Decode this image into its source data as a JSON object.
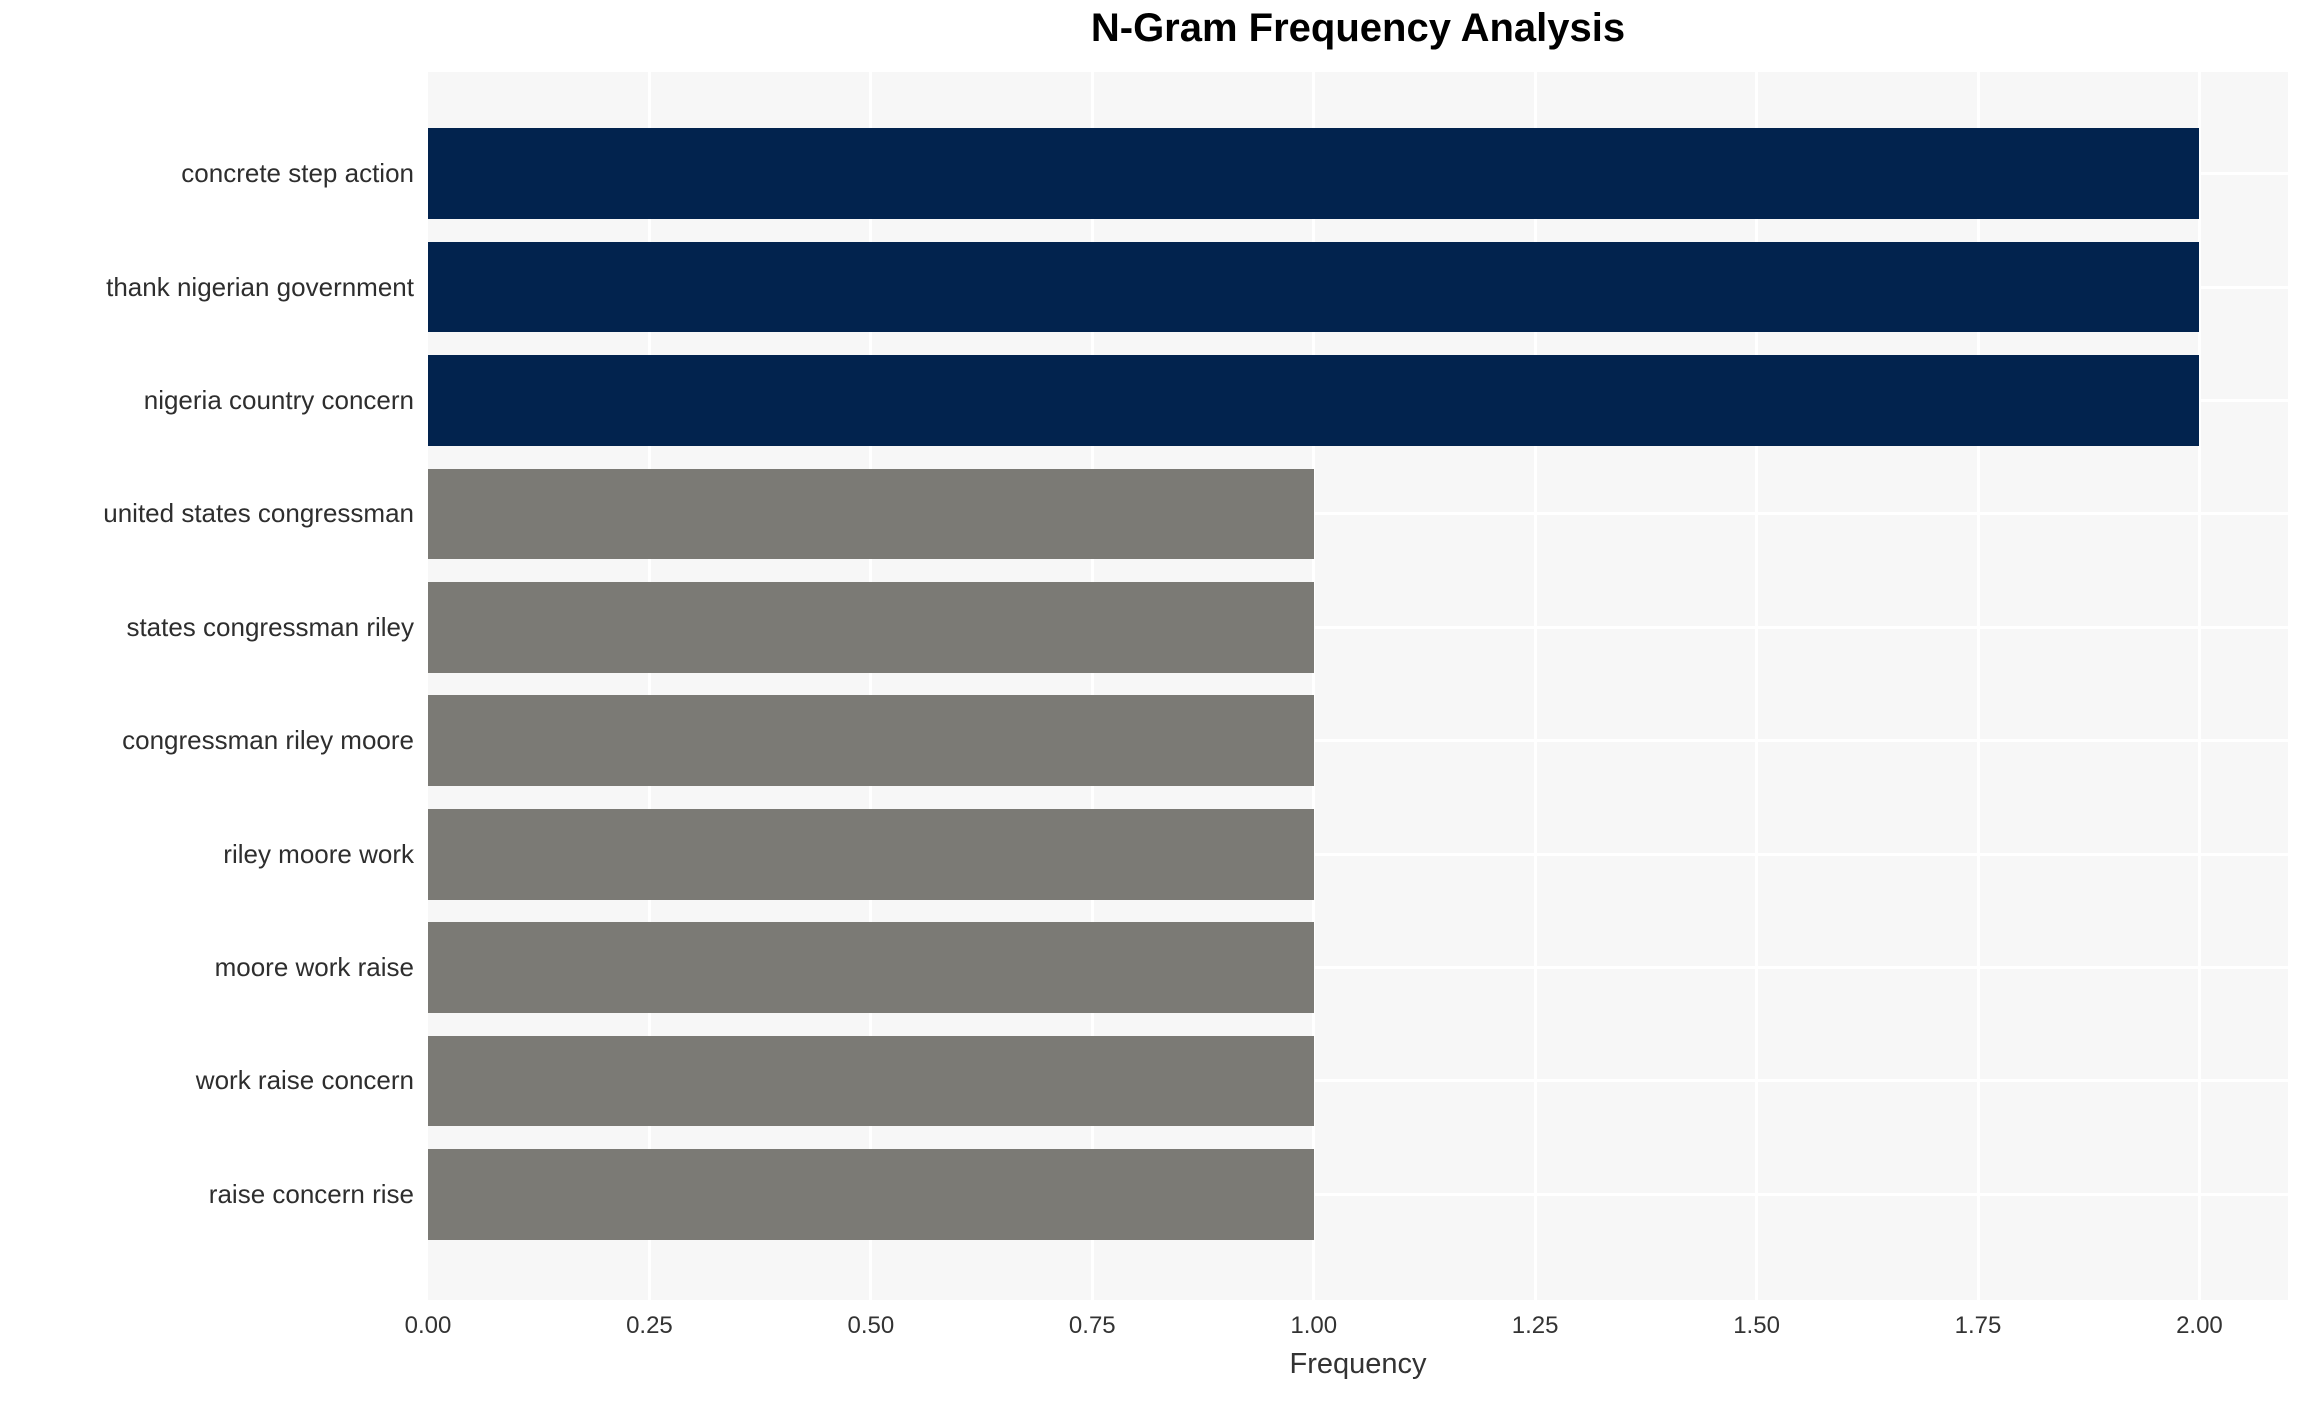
{
  "title": "N-Gram Frequency Analysis",
  "chart_data": {
    "type": "bar",
    "orientation": "horizontal",
    "title": "N-Gram Frequency Analysis",
    "categories": [
      "concrete step action",
      "thank nigerian government",
      "nigeria country concern",
      "united states congressman",
      "states congressman riley",
      "congressman riley moore",
      "riley moore work",
      "moore work raise",
      "work raise concern",
      "raise concern rise"
    ],
    "values": [
      2,
      2,
      2,
      1,
      1,
      1,
      1,
      1,
      1,
      1
    ],
    "bar_colors": [
      "#02234e",
      "#02234e",
      "#02234e",
      "#7b7a75",
      "#7b7a75",
      "#7b7a75",
      "#7b7a75",
      "#7b7a75",
      "#7b7a75",
      "#7b7a75"
    ],
    "xlabel": "Frequency",
    "ylabel": "",
    "xlim": [
      0,
      2.1
    ],
    "xticks": [
      0,
      0.25,
      0.5,
      0.75,
      1,
      1.25,
      1.5,
      1.75,
      2
    ],
    "xtick_labels": [
      "0.00",
      "0.25",
      "0.50",
      "0.75",
      "1.00",
      "1.25",
      "1.50",
      "1.75",
      "2.00"
    ],
    "grid": true,
    "legend": "none",
    "colors": {
      "high_value_bar": "#02234e",
      "low_value_bar": "#7b7a75",
      "plot_background": "#f7f7f7",
      "gridline": "#ffffff",
      "title_text": "#000000",
      "label_text": "#2e2e2e",
      "tick_text": "#333333"
    }
  }
}
